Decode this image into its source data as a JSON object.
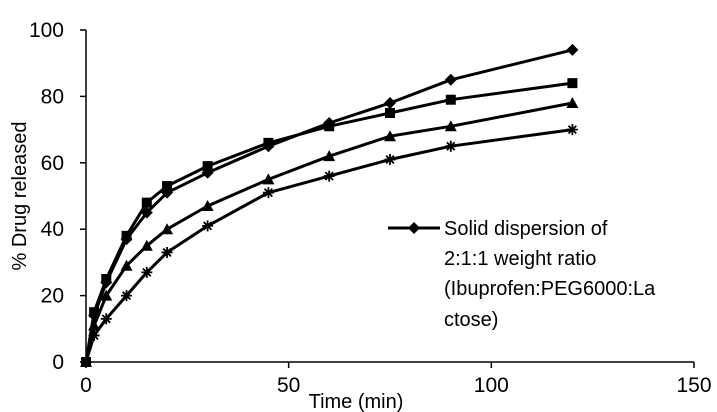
{
  "chart_data": {
    "type": "line",
    "title": "",
    "xlabel": "Time (min)",
    "ylabel": "% Drug released",
    "xlim": [
      0,
      150
    ],
    "ylim": [
      0,
      100
    ],
    "x_ticks": [
      "0",
      "50",
      "100",
      "150"
    ],
    "y_ticks": [
      "0",
      "20",
      "40",
      "60",
      "80",
      "100"
    ],
    "grid": false,
    "legend_position": "center-right",
    "legend_lines": [
      "Solid dispersion of",
      "2:1:1 weight ratio",
      "(Ibuprofen:PEG6000:La",
      "ctose)"
    ],
    "colors": {
      "line": "#000000",
      "axis": "#000000"
    },
    "series": [
      {
        "name": "Solid dispersion of 2:1:1 weight ratio (Ibuprofen:PEG6000:Lactose)",
        "marker": "diamond",
        "x": [
          0,
          2,
          5,
          10,
          15,
          20,
          30,
          45,
          60,
          75,
          90,
          120
        ],
        "y": [
          0,
          14,
          24,
          37,
          45,
          51,
          57,
          65,
          72,
          78,
          85,
          94
        ]
      },
      {
        "marker": "square",
        "x": [
          0,
          2,
          5,
          10,
          15,
          20,
          30,
          45,
          60,
          75,
          90,
          120
        ],
        "y": [
          0,
          15,
          25,
          38,
          48,
          53,
          59,
          66,
          71,
          75,
          79,
          84
        ]
      },
      {
        "marker": "triangle",
        "x": [
          0,
          2,
          5,
          10,
          15,
          20,
          30,
          45,
          60,
          75,
          90,
          120
        ],
        "y": [
          0,
          11,
          20,
          29,
          35,
          40,
          47,
          55,
          62,
          68,
          71,
          78
        ]
      },
      {
        "marker": "asterisk",
        "x": [
          0,
          2,
          5,
          10,
          15,
          20,
          30,
          45,
          60,
          75,
          90,
          120
        ],
        "y": [
          0,
          8,
          13,
          20,
          27,
          33,
          41,
          51,
          56,
          61,
          65,
          70
        ]
      }
    ]
  }
}
